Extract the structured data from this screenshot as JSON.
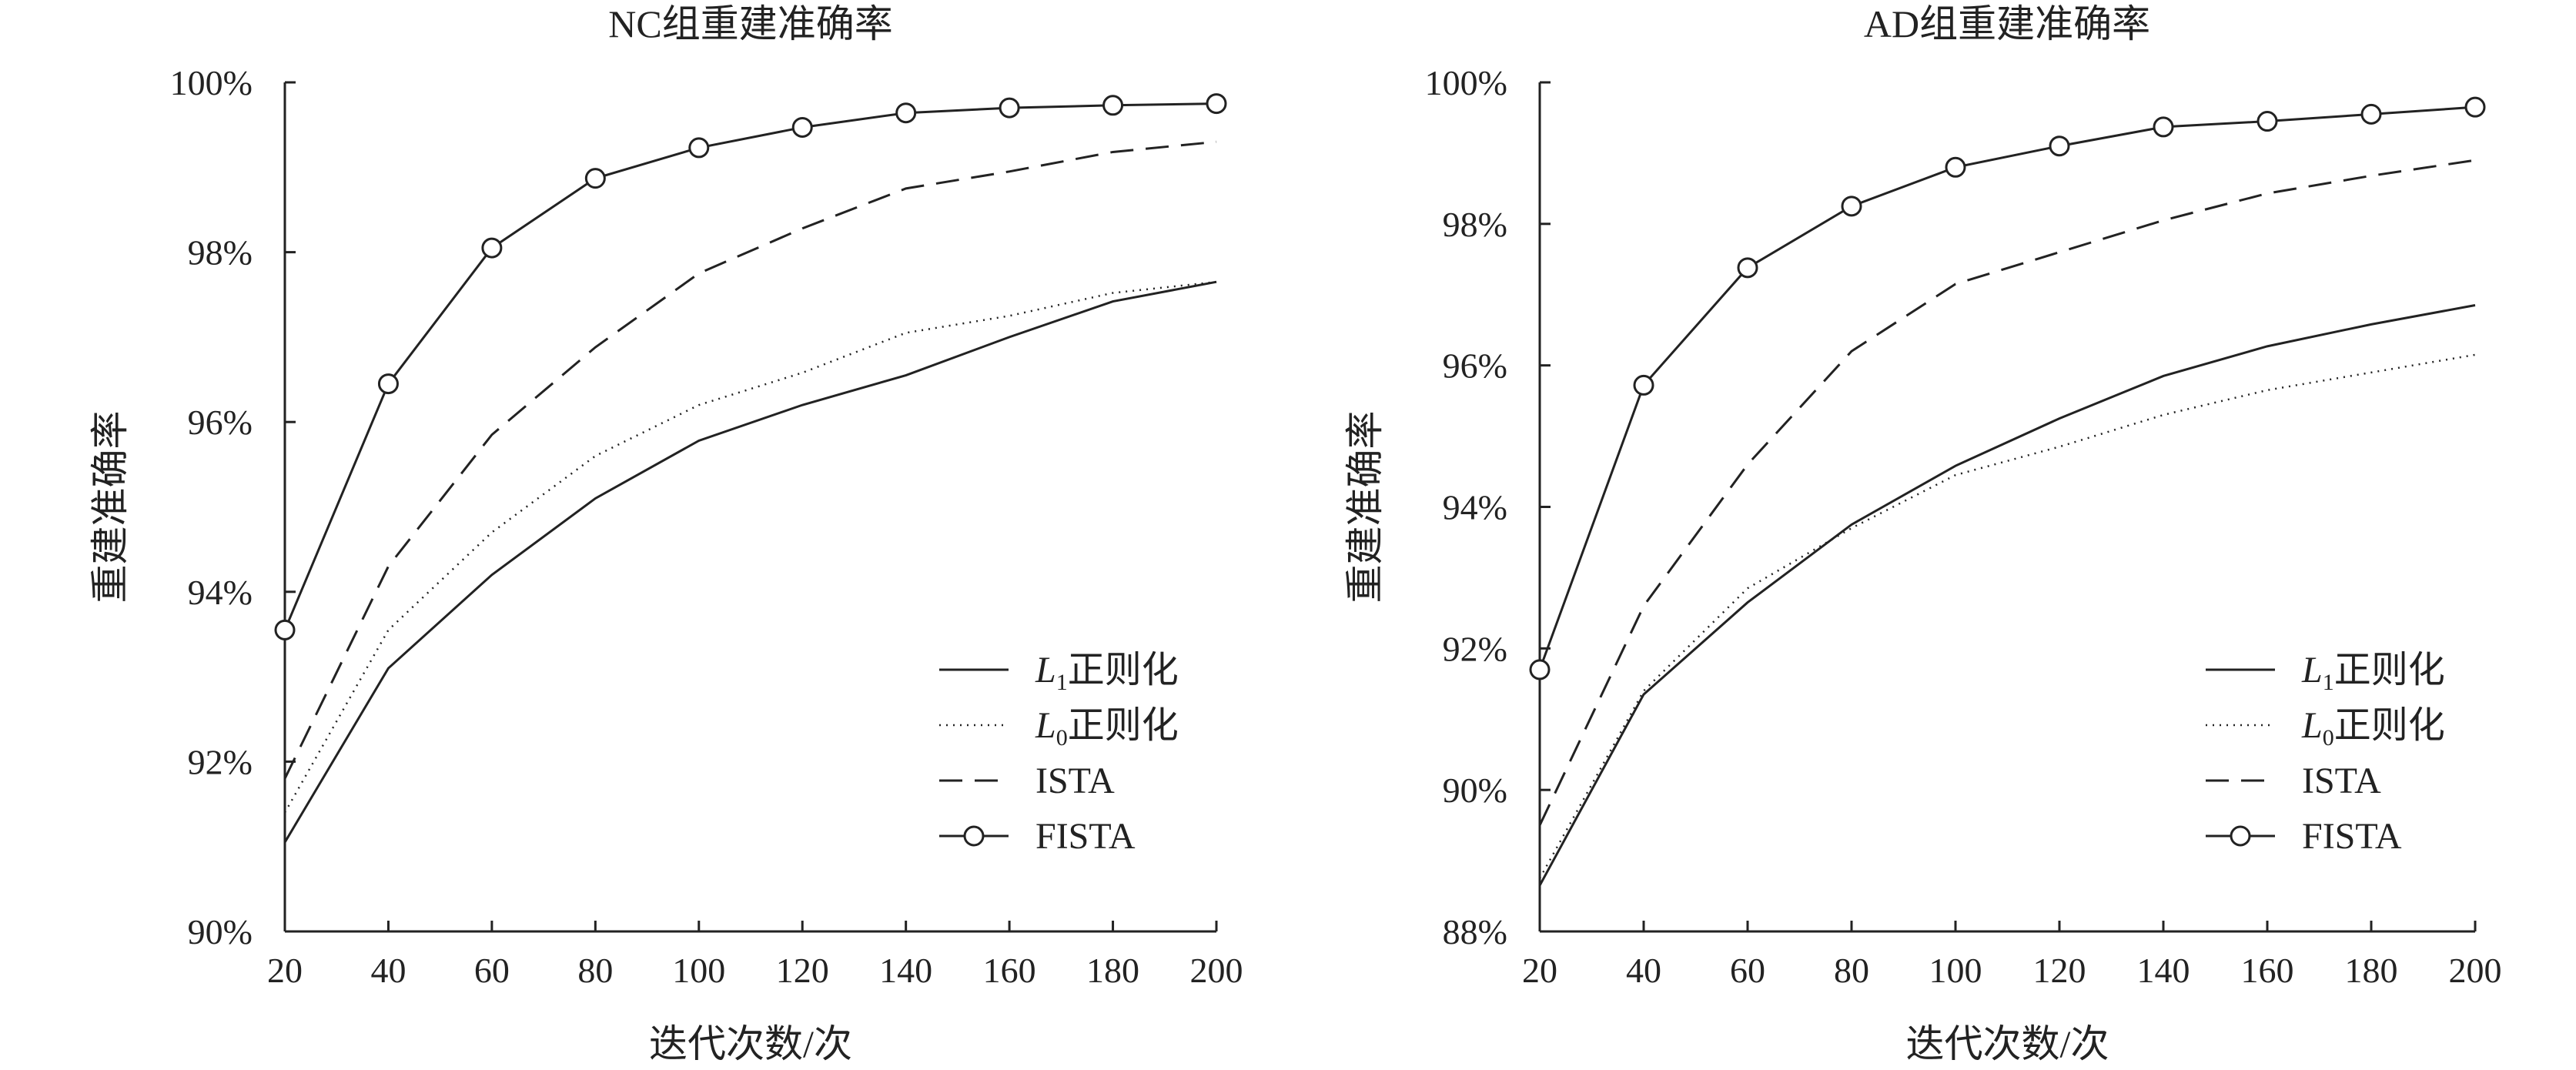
{
  "chart_data": [
    {
      "type": "line",
      "title": "NC组重建准确率",
      "xlabel": "迭代次数/次",
      "ylabel": "重建准确率",
      "x": [
        20,
        40,
        60,
        80,
        100,
        120,
        140,
        160,
        180,
        200
      ],
      "xticks": [
        "20",
        "40",
        "60",
        "80",
        "100",
        "120",
        "140",
        "160",
        "180",
        "200"
      ],
      "xlim": [
        20,
        200
      ],
      "ylim": [
        90,
        100
      ],
      "yticks": [
        "90%",
        "92%",
        "94%",
        "96%",
        "98%",
        "100%"
      ],
      "grid": false,
      "legend_position": "bottom-right",
      "series": [
        {
          "legend_main": "L",
          "legend_sub": "1",
          "legend_rest": "正则化",
          "style": "solid",
          "values": [
            91.05,
            93.1,
            94.2,
            95.1,
            95.78,
            96.2,
            96.55,
            97.0,
            97.42,
            97.65
          ]
        },
        {
          "legend_main": "L",
          "legend_sub": "0",
          "legend_rest": "正则化",
          "style": "dotted",
          "values": [
            91.4,
            93.55,
            94.7,
            95.6,
            96.2,
            96.58,
            97.05,
            97.25,
            97.52,
            97.65
          ]
        },
        {
          "legend_main": "ISTA",
          "legend_sub": "",
          "legend_rest": "",
          "style": "dashed",
          "values": [
            91.8,
            94.3,
            95.85,
            96.88,
            97.75,
            98.28,
            98.75,
            98.95,
            99.18,
            99.3
          ]
        },
        {
          "legend_main": "FISTA",
          "legend_sub": "",
          "legend_rest": "",
          "style": "solid-circle",
          "values": [
            93.55,
            96.45,
            98.05,
            98.87,
            99.23,
            99.47,
            99.64,
            99.7,
            99.73,
            99.75
          ]
        }
      ]
    },
    {
      "type": "line",
      "title": "AD组重建准确率",
      "xlabel": "迭代次数/次",
      "ylabel": "重建准确率",
      "x": [
        20,
        40,
        60,
        80,
        100,
        120,
        140,
        160,
        180,
        200
      ],
      "xticks": [
        "20",
        "40",
        "60",
        "80",
        "100",
        "120",
        "140",
        "160",
        "180",
        "200"
      ],
      "xlim": [
        20,
        200
      ],
      "ylim": [
        88,
        100
      ],
      "yticks": [
        "88%",
        "90%",
        "92%",
        "94%",
        "96%",
        "98%",
        "100%"
      ],
      "grid": false,
      "legend_position": "bottom-right",
      "series": [
        {
          "legend_main": "L",
          "legend_sub": "1",
          "legend_rest": "正则化",
          "style": "solid",
          "values": [
            88.65,
            91.35,
            92.65,
            93.75,
            94.58,
            95.25,
            95.85,
            96.27,
            96.58,
            96.85
          ]
        },
        {
          "legend_main": "L",
          "legend_sub": "0",
          "legend_rest": "正则化",
          "style": "dotted",
          "values": [
            88.75,
            91.4,
            92.85,
            93.7,
            94.45,
            94.85,
            95.3,
            95.65,
            95.9,
            96.15
          ]
        },
        {
          "legend_main": "ISTA",
          "legend_sub": "",
          "legend_rest": "",
          "style": "dashed",
          "values": [
            89.5,
            92.6,
            94.6,
            96.2,
            97.15,
            97.6,
            98.05,
            98.43,
            98.68,
            98.9
          ]
        },
        {
          "legend_main": "FISTA",
          "legend_sub": "",
          "legend_rest": "",
          "style": "solid-circle",
          "values": [
            91.7,
            95.72,
            97.38,
            98.25,
            98.8,
            99.1,
            99.37,
            99.45,
            99.55,
            99.65
          ]
        }
      ]
    }
  ]
}
